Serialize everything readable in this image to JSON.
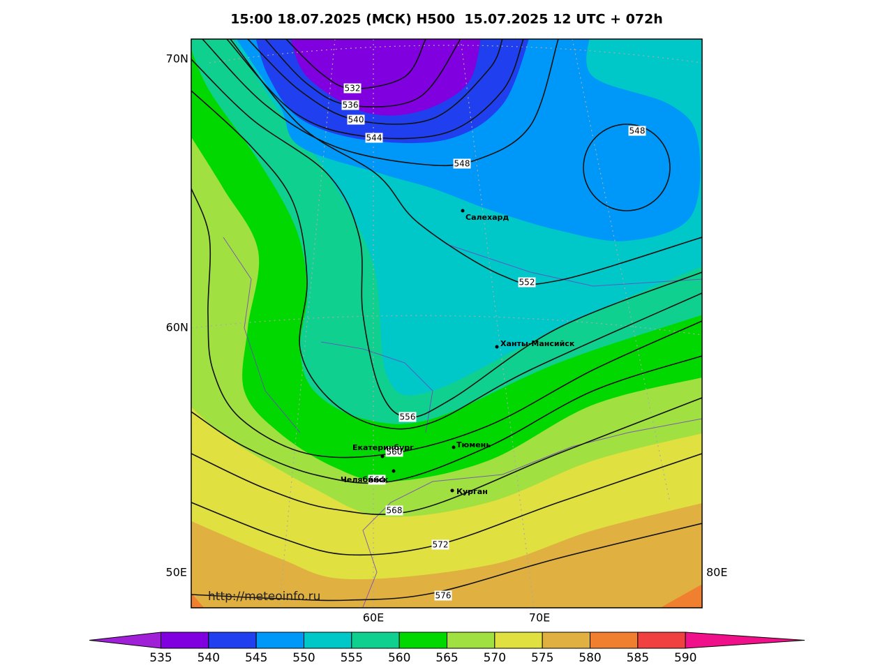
{
  "header": {
    "title": "15:00 18.07.2025 (МСК) H500  15.07.2025 12 UTC + 072h"
  },
  "map": {
    "lat_labels": [
      "70N",
      "60N"
    ],
    "lon_labels": [
      "50E",
      "80E",
      "60E",
      "70E"
    ],
    "contour_labels": [
      532,
      536,
      540,
      544,
      548,
      548,
      552,
      556,
      560,
      564,
      568,
      572,
      576
    ],
    "cities": [
      "Салехард",
      "Ханты-Мансийск",
      "Екатеринбург",
      "Тюмень",
      "Челябинск",
      "Курган"
    ],
    "watermark": "http://meteoinfo.ru"
  },
  "colorbar": {
    "labels": [
      535,
      540,
      545,
      550,
      555,
      560,
      565,
      570,
      575,
      580,
      585,
      590
    ],
    "colors": [
      "#a020d8",
      "#8000e0",
      "#2040f0",
      "#0098f8",
      "#00c8c8",
      "#10d090",
      "#00d800",
      "#a0e040",
      "#e0e040",
      "#e0b040",
      "#f08030",
      "#f04040",
      "#f0108a"
    ]
  }
}
